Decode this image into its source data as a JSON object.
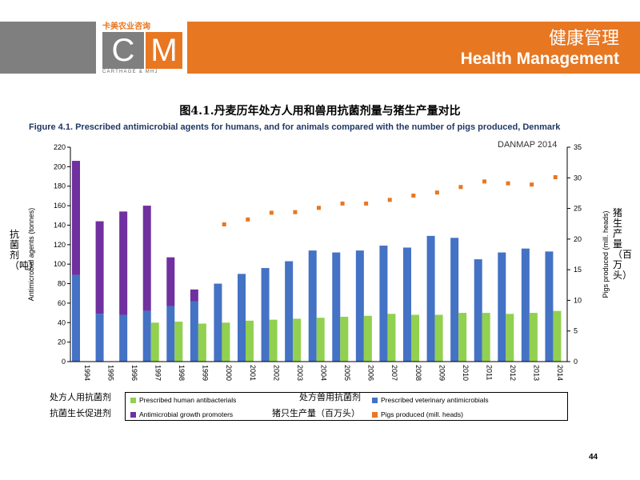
{
  "header": {
    "title_cn": "健康管理",
    "title_en": "Health Management",
    "logo_cn": "卡美农业咨询",
    "logo_letter_c": "C",
    "logo_letter_m": "M",
    "logo_en": "CARTHAGE & MHJ",
    "colors": {
      "orange": "#E87722",
      "gray": "#7F7F7F"
    }
  },
  "figure": {
    "title_cn": "图4.1.丹麦历年处方人用和兽用抗菌剂量与猪生产量对比",
    "title_en": "Figure 4.1. Prescribed antimicrobial agents for humans, and for animals compared with the number of pigs produced, Denmark",
    "watermark": "DANMAP 2014",
    "y_left_cn": "抗菌剂（吨）",
    "y_right_cn": "猪生产量（百万头）"
  },
  "chart_data": {
    "type": "bar",
    "title": "Figure 4.1. Prescribed antimicrobial agents for humans, and for animals compared with the number of pigs produced, Denmark",
    "categories": [
      "1994",
      "1995",
      "1996",
      "1997",
      "1998",
      "1999",
      "2000",
      "2001",
      "2002",
      "2003",
      "2004",
      "2005",
      "2006",
      "2007",
      "2008",
      "2009",
      "2010",
      "2011",
      "2012",
      "2013",
      "2014"
    ],
    "ylabel": "Antimicrobial agents (tonnes)",
    "y2label": "Pigs produced (mill. heads)",
    "ylim": [
      0,
      220
    ],
    "y2lim": [
      0,
      35
    ],
    "yticks": [
      0,
      20,
      40,
      60,
      80,
      100,
      120,
      140,
      160,
      180,
      200,
      220
    ],
    "y2ticks": [
      0,
      5,
      10,
      15,
      20,
      25,
      30,
      35
    ],
    "grid": false,
    "legend_position": "bottom",
    "series": [
      {
        "name": "Prescribed human antibacterials",
        "name_cn": "处方人用抗菌剂",
        "kind": "bar",
        "color": "#92D050",
        "values": [
          null,
          null,
          null,
          40,
          41,
          39,
          40,
          42,
          43,
          44,
          45,
          46,
          47,
          49,
          48,
          48,
          50,
          50,
          49,
          50,
          52
        ]
      },
      {
        "name": "Prescribed veterinary antimicrobials",
        "name_cn": "处方兽用抗菌剂",
        "kind": "stacked_bar",
        "color": "#4472C4",
        "values": [
          89,
          49,
          48,
          52,
          57,
          62,
          80,
          90,
          96,
          103,
          114,
          112,
          114,
          119,
          117,
          129,
          127,
          105,
          112,
          116,
          113
        ]
      },
      {
        "name": "Antimicrobial growth promoters",
        "name_cn": "抗菌生长促进剂",
        "kind": "stacked_bar",
        "color": "#7030A0",
        "values": [
          117,
          95,
          106,
          108,
          50,
          12,
          0,
          0,
          0,
          0,
          0,
          0,
          0,
          0,
          0,
          0,
          0,
          0,
          0,
          0,
          0
        ]
      },
      {
        "name": "Pigs produced (mill. heads)",
        "name_cn": "猪只生产量（百万头）",
        "kind": "scatter",
        "axis": "right",
        "color": "#E87722",
        "values": [
          null,
          null,
          null,
          null,
          null,
          null,
          22.4,
          23.2,
          24.3,
          24.4,
          25.1,
          25.8,
          25.8,
          26.4,
          27.1,
          27.6,
          28.5,
          29.4,
          29.1,
          28.9,
          30.1
        ]
      }
    ]
  },
  "page_number": "44"
}
